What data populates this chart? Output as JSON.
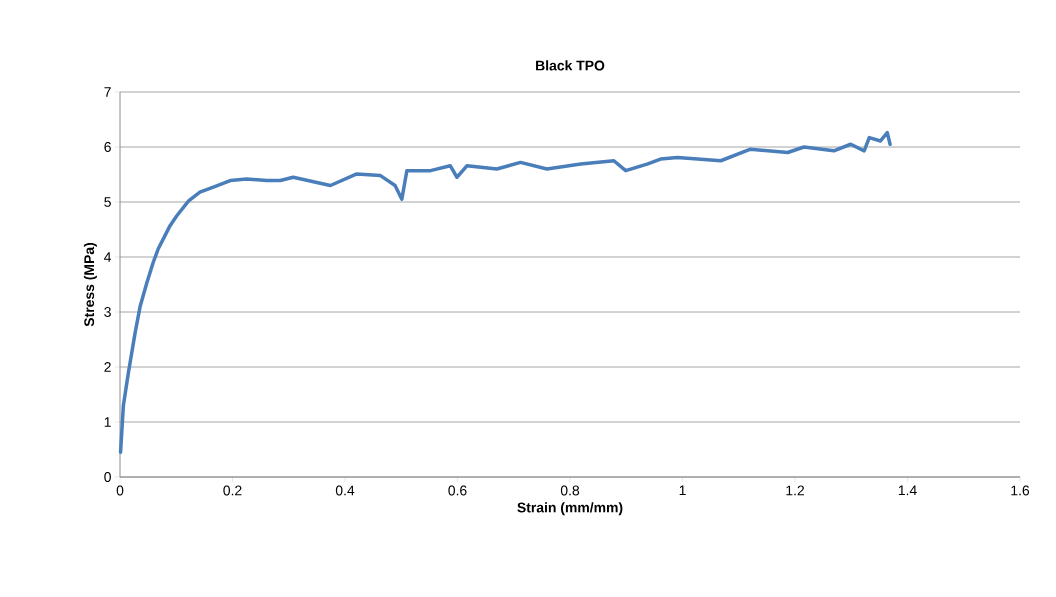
{
  "chart_data": {
    "type": "line",
    "title": "Black TPO",
    "xlabel": "Strain (mm/mm)",
    "ylabel": "Stress (MPa)",
    "xlim": [
      0,
      1.6
    ],
    "xticks": [
      0,
      0.2,
      0.4,
      0.6,
      0.8,
      1,
      1.2,
      1.4,
      1.6
    ],
    "ylim": [
      0,
      7
    ],
    "yticks": [
      0,
      1,
      2,
      3,
      4,
      5,
      6,
      7
    ],
    "grid": "y",
    "marker": "none",
    "line_style": "solid",
    "series": [
      {
        "color": "#4a7ebb",
        "x": [
          0.001,
          0.006,
          0.015,
          0.027,
          0.036,
          0.048,
          0.059,
          0.068,
          0.077,
          0.089,
          0.101,
          0.122,
          0.142,
          0.166,
          0.196,
          0.225,
          0.261,
          0.285,
          0.308,
          0.374,
          0.421,
          0.463,
          0.489,
          0.501,
          0.51,
          0.552,
          0.587,
          0.599,
          0.617,
          0.67,
          0.712,
          0.759,
          0.819,
          0.878,
          0.899,
          0.937,
          0.961,
          0.991,
          1.068,
          1.121,
          1.187,
          1.216,
          1.269,
          1.299,
          1.323,
          1.332,
          1.352,
          1.364,
          1.369
        ],
        "values": [
          0.45,
          1.3,
          1.9,
          2.63,
          3.11,
          3.54,
          3.9,
          4.15,
          4.33,
          4.57,
          4.75,
          5.02,
          5.18,
          5.27,
          5.39,
          5.42,
          5.39,
          5.39,
          5.45,
          5.3,
          5.51,
          5.48,
          5.3,
          5.05,
          5.57,
          5.57,
          5.66,
          5.45,
          5.66,
          5.6,
          5.72,
          5.6,
          5.69,
          5.75,
          5.57,
          5.69,
          5.78,
          5.81,
          5.75,
          5.96,
          5.9,
          6.0,
          5.93,
          6.05,
          5.93,
          6.17,
          6.11,
          6.26,
          6.05
        ]
      }
    ]
  }
}
